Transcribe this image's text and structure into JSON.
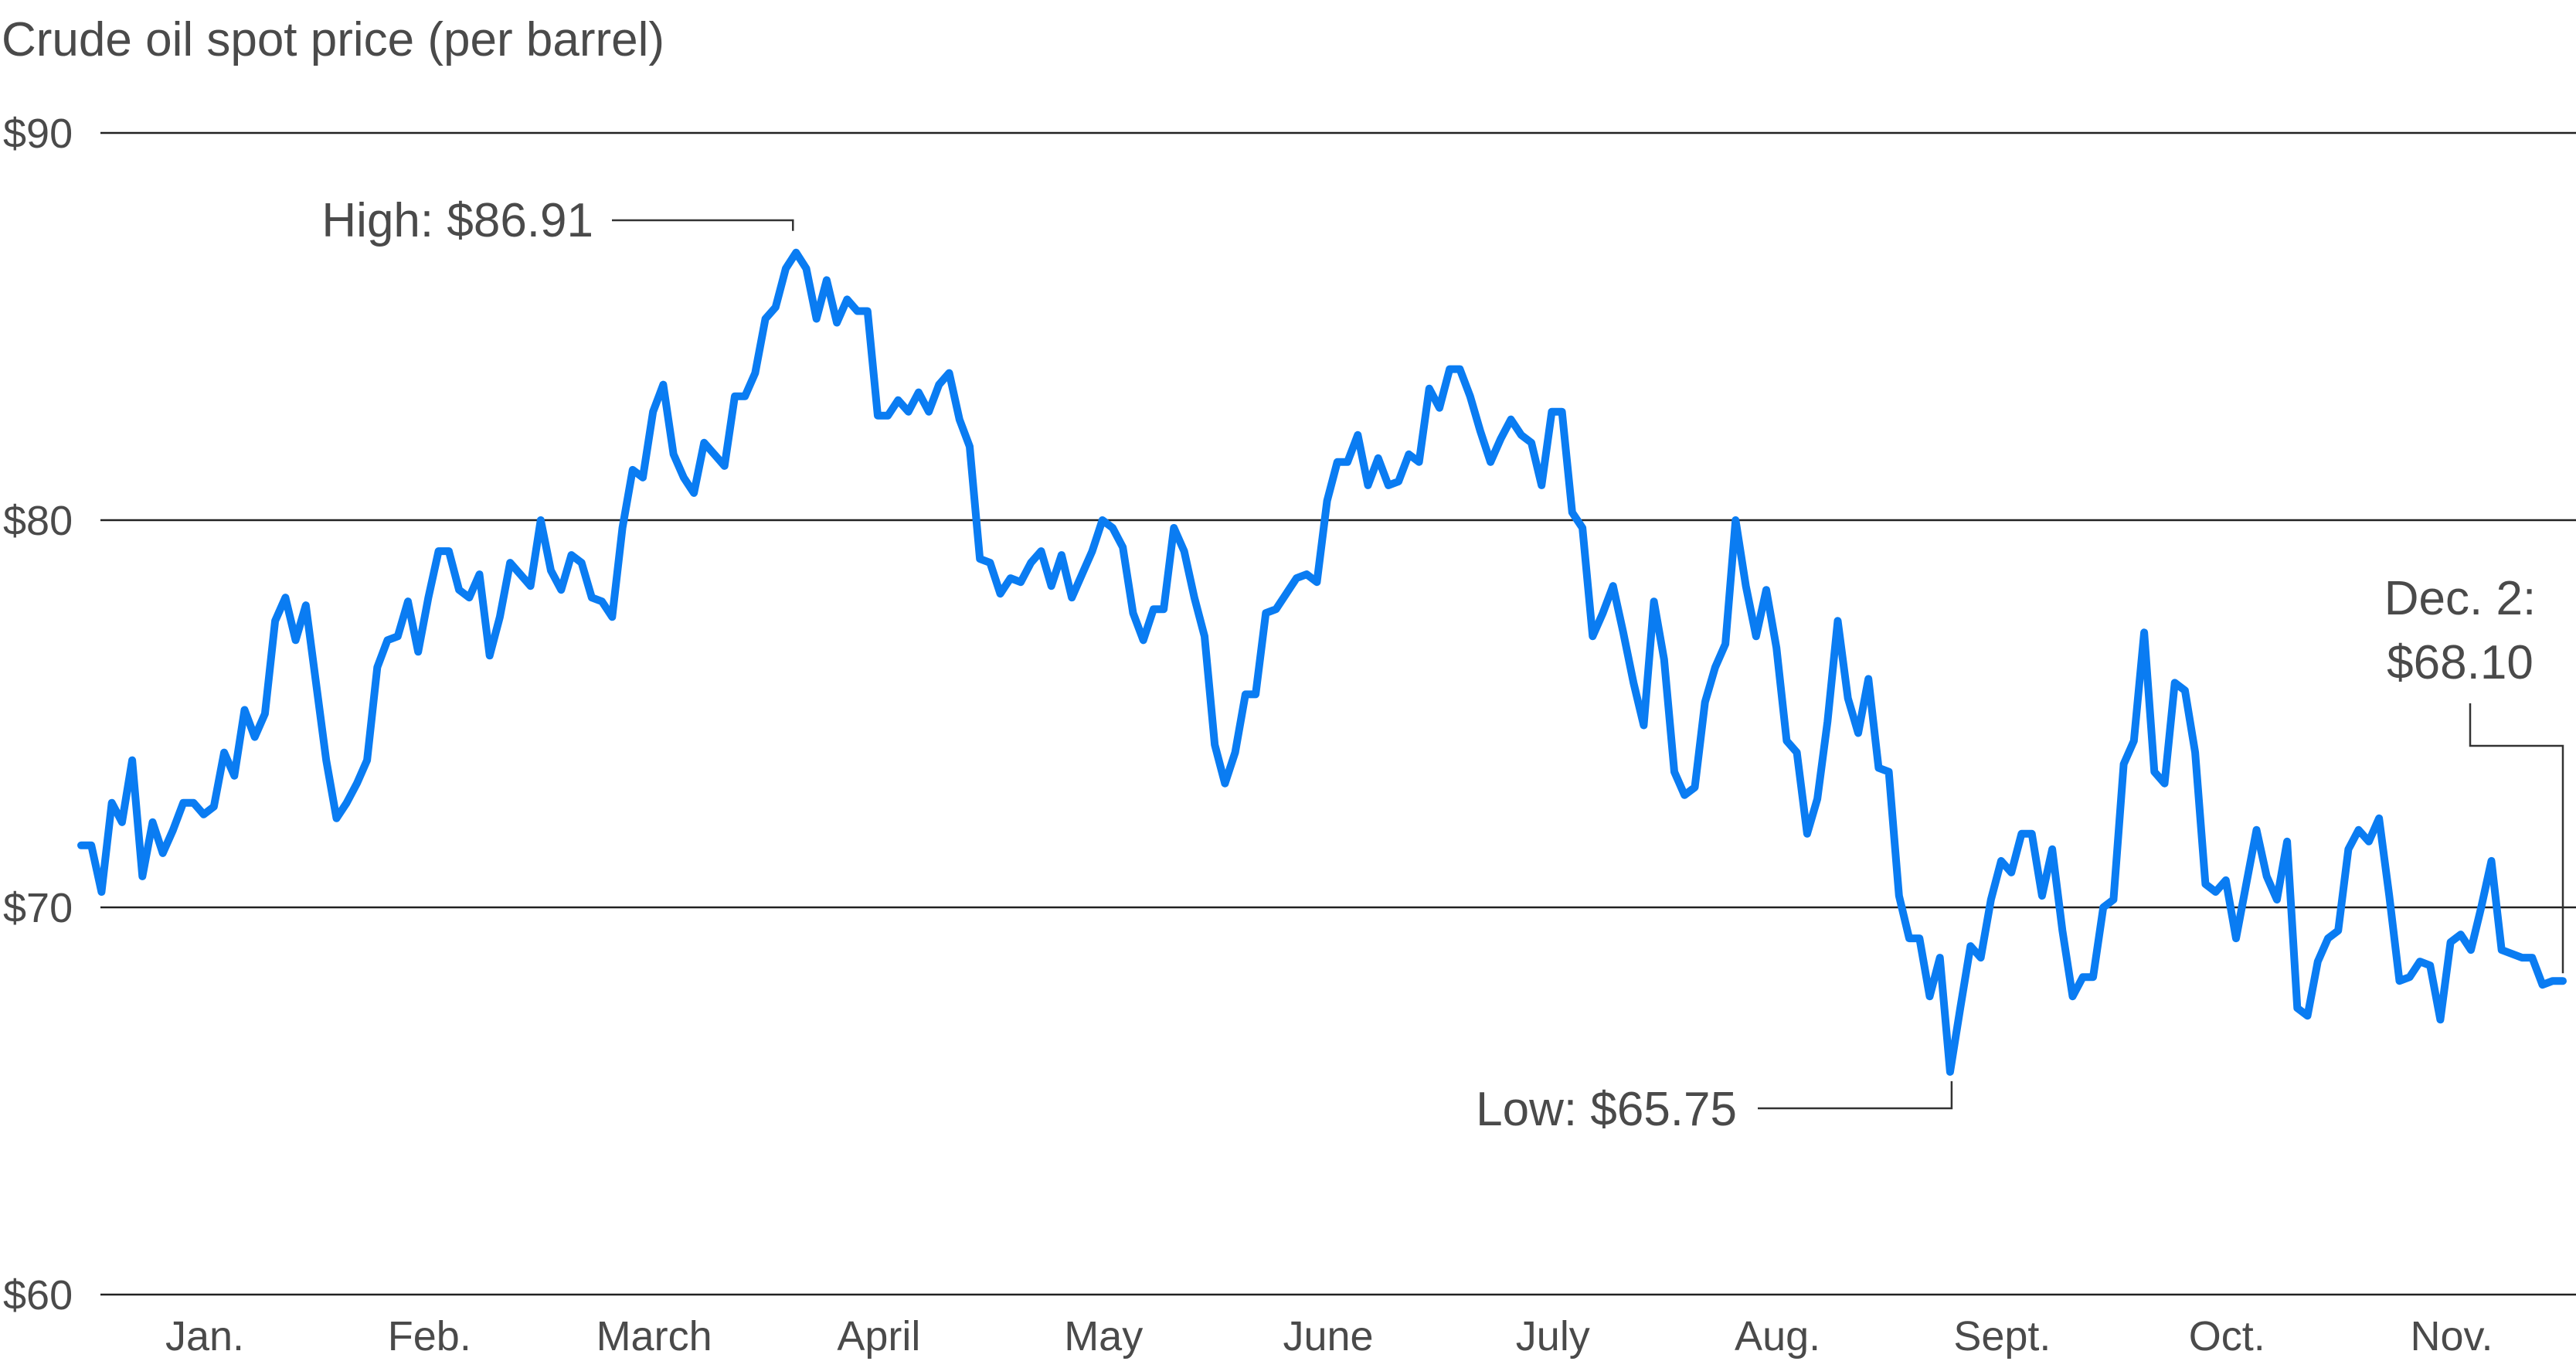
{
  "chart_data": {
    "type": "line",
    "title": "Crude oil spot price (per barrel)",
    "xlabel": "",
    "ylabel": "",
    "ylim": [
      60,
      90
    ],
    "y_ticks": [
      {
        "value": 60,
        "label": "$60"
      },
      {
        "value": 70,
        "label": "$70"
      },
      {
        "value": 80,
        "label": "$80"
      },
      {
        "value": 90,
        "label": "$90"
      }
    ],
    "grid": true,
    "legend": "none",
    "line_color": "#0a7cf2",
    "months": [
      "Jan.",
      "Feb.",
      "March",
      "April",
      "May",
      "June",
      "July",
      "Aug.",
      "Sept.",
      "Oct.",
      "Nov."
    ],
    "series": [
      {
        "values": [
          71.6,
          71.6,
          70.4,
          72.7,
          72.2,
          73.8,
          70.8,
          72.2,
          71.4,
          72.0,
          72.7,
          72.7,
          72.4,
          72.6,
          74.0,
          73.4,
          75.1,
          74.4,
          75.0,
          77.4,
          78.0,
          76.9,
          77.8,
          75.8,
          73.8,
          72.3,
          72.7,
          73.2,
          73.8,
          76.2,
          76.9,
          77.0,
          77.9,
          76.6,
          78.0,
          79.2,
          79.2,
          78.2,
          78.0,
          78.6,
          76.5,
          77.5,
          78.9,
          78.6,
          78.3,
          80.0,
          78.7,
          78.2,
          79.1,
          78.9,
          78.0,
          77.9,
          77.5,
          79.8,
          81.3,
          81.1,
          82.8,
          83.5,
          81.7,
          81.1,
          80.7,
          82.0,
          81.7,
          81.4,
          83.2,
          83.2,
          83.8,
          85.2,
          85.5,
          86.5,
          86.91,
          86.5,
          85.2,
          86.2,
          85.1,
          85.7,
          85.4,
          85.4,
          82.7,
          82.7,
          83.1,
          82.8,
          83.3,
          82.8,
          83.5,
          83.8,
          82.6,
          81.9,
          79.0,
          78.9,
          78.1,
          78.5,
          78.4,
          78.9,
          79.2,
          78.3,
          79.1,
          78.0,
          78.6,
          79.2,
          80.0,
          79.8,
          79.3,
          77.6,
          76.9,
          77.7,
          77.7,
          79.8,
          79.2,
          78.0,
          77.0,
          74.2,
          73.2,
          74.0,
          75.5,
          75.5,
          77.6,
          77.7,
          78.1,
          78.5,
          78.6,
          78.4,
          80.5,
          81.5,
          81.5,
          82.2,
          80.9,
          81.6,
          80.9,
          81.0,
          81.7,
          81.5,
          83.4,
          82.9,
          83.9,
          83.9,
          83.2,
          82.3,
          81.5,
          82.1,
          82.6,
          82.2,
          82.0,
          80.9,
          82.8,
          82.8,
          80.2,
          79.8,
          77.0,
          77.6,
          78.3,
          77.1,
          75.8,
          74.7,
          77.9,
          76.4,
          73.5,
          72.9,
          73.1,
          75.3,
          76.2,
          76.8,
          80.0,
          78.3,
          77.0,
          78.2,
          76.7,
          74.3,
          74.0,
          71.9,
          72.8,
          74.8,
          77.4,
          75.4,
          74.5,
          75.9,
          73.6,
          73.5,
          70.3,
          69.2,
          69.2,
          67.7,
          68.7,
          65.75,
          67.4,
          69.0,
          68.7,
          70.2,
          71.2,
          70.9,
          71.9,
          71.9,
          70.3,
          71.5,
          69.4,
          67.7,
          68.2,
          68.2,
          70.0,
          70.2,
          73.7,
          74.3,
          77.1,
          73.5,
          73.2,
          75.8,
          75.6,
          74.0,
          70.6,
          70.4,
          70.7,
          69.2,
          70.6,
          72.0,
          70.8,
          70.2,
          71.7,
          67.4,
          67.2,
          68.6,
          69.2,
          69.4,
          71.5,
          72.0,
          71.7,
          72.3,
          70.3,
          68.1,
          68.2,
          68.6,
          68.5,
          67.1,
          69.1,
          69.3,
          68.9,
          70.0,
          71.2,
          68.9,
          68.8,
          68.7,
          68.7,
          68.0,
          68.1,
          68.1
        ]
      }
    ],
    "annotations": {
      "high": "High: $86.91",
      "low": "Low: $65.75",
      "end_line1": "Dec. 2:",
      "end_line2": "$68.10"
    }
  }
}
